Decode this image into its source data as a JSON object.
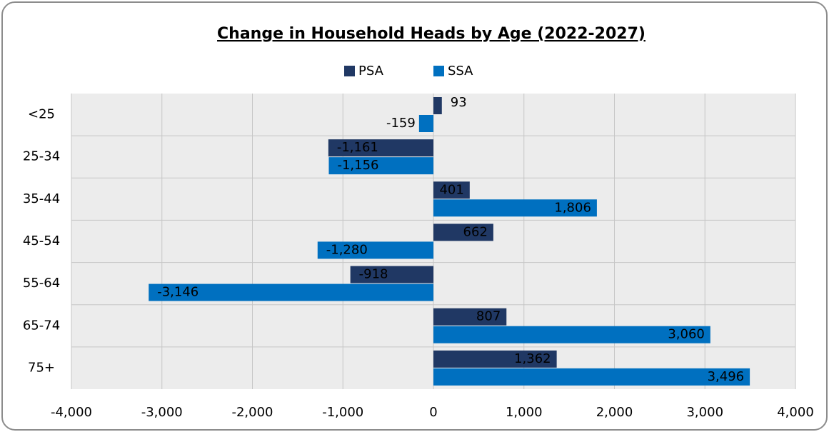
{
  "chart_data": {
    "type": "bar",
    "orientation": "horizontal",
    "title": "Change in Household Heads by Age (2022-2027)",
    "categories": [
      "<25",
      "25-34",
      "35-44",
      "45-54",
      "55-64",
      "65-74",
      "75+"
    ],
    "series": [
      {
        "name": "PSA",
        "color": "#203864",
        "values": [
          93,
          -1161,
          401,
          662,
          -918,
          807,
          1362
        ],
        "value_labels": [
          "93",
          "-1,161",
          "401",
          "662",
          "-918",
          "807",
          "1,362"
        ]
      },
      {
        "name": "SSA",
        "color": "#0070c0",
        "values": [
          -159,
          -1156,
          1806,
          -1280,
          -3146,
          3060,
          3496
        ],
        "value_labels": [
          "-159",
          "-1,156",
          "1,806",
          "-1,280",
          "-3,146",
          "3,060",
          "3,496"
        ]
      }
    ],
    "xlim": [
      -4000,
      4000
    ],
    "xticks": [
      {
        "value": -4000,
        "label": "-4,000"
      },
      {
        "value": -3000,
        "label": "-3,000"
      },
      {
        "value": -2000,
        "label": "-2,000"
      },
      {
        "value": -1000,
        "label": "-1,000"
      },
      0,
      {
        "value": 1000,
        "label": "1,000"
      },
      {
        "value": 2000,
        "label": "2,000"
      },
      {
        "value": 3000,
        "label": "3,000"
      },
      {
        "value": 4000,
        "label": "4,000"
      }
    ],
    "grid": true,
    "legend": "top"
  }
}
